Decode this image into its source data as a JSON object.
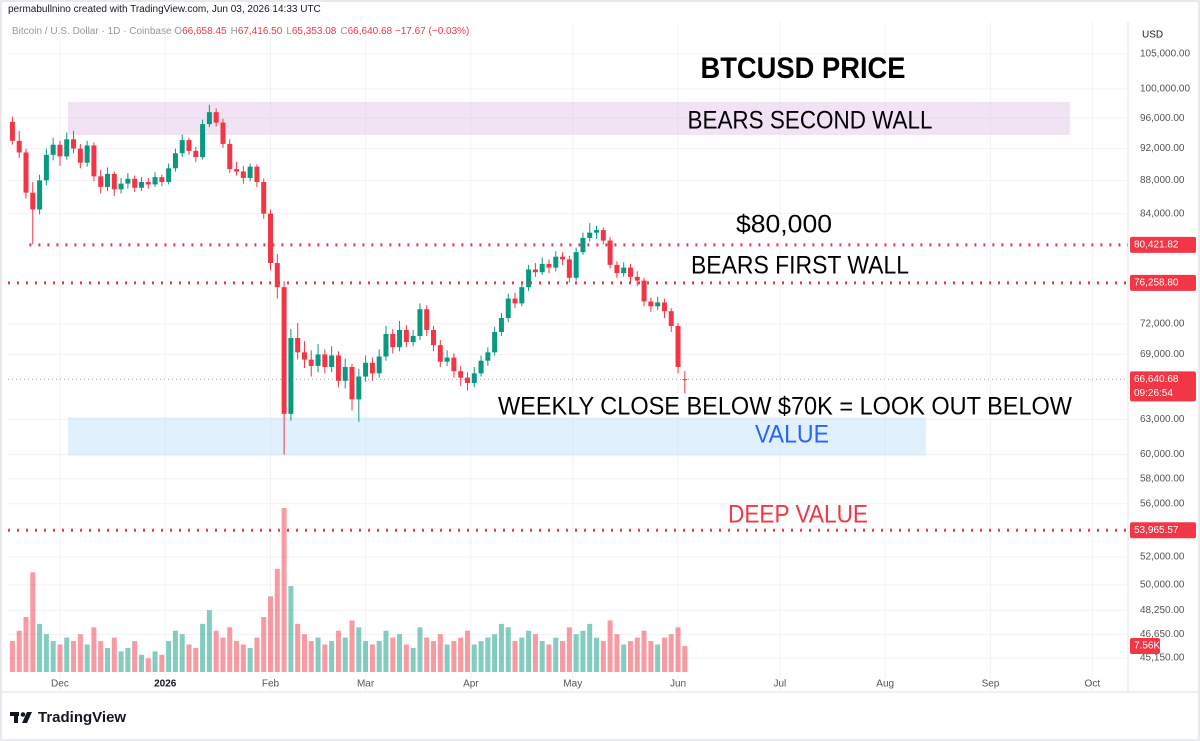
{
  "header": {
    "credit": "permabullnino created with TradingView.com, Jun 03, 2026 14:33 UTC",
    "symbol": "Bitcoin / U.S. Dollar · 1D · Coinbase",
    "ohlc": [
      {
        "key": "O",
        "text": "66,658.45"
      },
      {
        "key": "H",
        "text": "67,416.50"
      },
      {
        "key": "L",
        "text": "65,353.08"
      },
      {
        "key": "C",
        "text": "66,640.68"
      }
    ],
    "change": "−17.67 (−0.03%)",
    "currency": "USD"
  },
  "footer": {
    "brand": "TradingView"
  },
  "chart_data": {
    "type": "candlestick",
    "log": true,
    "grid": true,
    "up_color": "#089981",
    "down_color": "#f23645",
    "ylim": [
      43050,
      109800
    ],
    "yticks": [
      {
        "value": 105000,
        "label": "105,000.00"
      },
      {
        "value": 100000,
        "label": "100,000.00"
      },
      {
        "value": 96000,
        "label": "96,000.00"
      },
      {
        "value": 92000,
        "label": "92,000.00"
      },
      {
        "value": 88000,
        "label": "88,000.00"
      },
      {
        "value": 84000,
        "label": "84,000.00"
      },
      {
        "value": 72000,
        "label": "72,000.00"
      },
      {
        "value": 69000,
        "label": "69,000.00"
      },
      {
        "value": 63000,
        "label": "63,000.00"
      },
      {
        "value": 60000,
        "label": "60,000.00"
      },
      {
        "value": 58000,
        "label": "58,000.00"
      },
      {
        "value": 56000,
        "label": "56,000.00"
      },
      {
        "value": 52000,
        "label": "52,000.00"
      },
      {
        "value": 50000,
        "label": "50,000.00"
      },
      {
        "value": 48250,
        "label": "48,250.00"
      },
      {
        "value": 46650,
        "label": "46,650.00"
      },
      {
        "value": 45150,
        "label": "45,150.00"
      }
    ],
    "xlim": [
      -15.3,
      314.5
    ],
    "xticks": [
      {
        "value": 0,
        "label": "Dec"
      },
      {
        "value": 31,
        "label": "2026"
      },
      {
        "value": 62,
        "label": "Feb"
      },
      {
        "value": 90,
        "label": "Mar"
      },
      {
        "value": 121,
        "label": "Apr"
      },
      {
        "value": 151,
        "label": "May"
      },
      {
        "value": 182,
        "label": "Jun"
      },
      {
        "value": 212,
        "label": "Jul"
      },
      {
        "value": 243,
        "label": "Aug"
      },
      {
        "value": 274,
        "label": "Sep"
      },
      {
        "value": 304,
        "label": "Oct"
      }
    ],
    "x": [
      -14,
      -12,
      -10,
      -8,
      -6,
      -4,
      -2,
      0,
      2,
      4,
      6,
      8,
      10,
      12,
      14,
      16,
      18,
      20,
      22,
      24,
      26,
      28,
      30,
      32,
      34,
      36,
      38,
      40,
      42,
      44,
      46,
      48,
      50,
      52,
      54,
      56,
      58,
      60,
      62,
      64,
      66,
      68,
      70,
      72,
      74,
      76,
      78,
      80,
      82,
      84,
      86,
      88,
      90,
      92,
      94,
      96,
      98,
      100,
      102,
      104,
      106,
      108,
      110,
      112,
      114,
      116,
      118,
      120,
      122,
      124,
      126,
      128,
      130,
      132,
      134,
      136,
      138,
      140,
      142,
      144,
      146,
      148,
      150,
      152,
      154,
      156,
      158,
      160,
      162,
      164,
      166,
      168,
      170,
      172,
      174,
      176,
      178,
      180,
      182,
      184
    ],
    "candles": [
      [
        95500,
        96200,
        92500,
        93000
      ],
      [
        93000,
        94300,
        90800,
        91500
      ],
      [
        91500,
        92000,
        85800,
        86500
      ],
      [
        86500,
        87800,
        80500,
        84500
      ],
      [
        84500,
        88700,
        83900,
        88000
      ],
      [
        88000,
        92000,
        87400,
        91200
      ],
      [
        91200,
        93400,
        90500,
        92500
      ],
      [
        92500,
        93000,
        89800,
        91000
      ],
      [
        91000,
        94100,
        90600,
        93200
      ],
      [
        93200,
        94300,
        91400,
        92000
      ],
      [
        92000,
        92600,
        89500,
        90200
      ],
      [
        90200,
        93000,
        89700,
        92400
      ],
      [
        92400,
        92800,
        87900,
        88500
      ],
      [
        88500,
        89300,
        86400,
        87200
      ],
      [
        87200,
        89600,
        86700,
        88800
      ],
      [
        88800,
        89100,
        86100,
        86900
      ],
      [
        86900,
        88300,
        86400,
        87600
      ],
      [
        87600,
        88900,
        87000,
        88200
      ],
      [
        88200,
        88600,
        86600,
        87100
      ],
      [
        87100,
        88400,
        86700,
        87800
      ],
      [
        87800,
        88300,
        87000,
        87500
      ],
      [
        87500,
        89000,
        87200,
        88400
      ],
      [
        88400,
        88700,
        87300,
        87800
      ],
      [
        87800,
        90100,
        87500,
        89500
      ],
      [
        89500,
        92000,
        89100,
        91400
      ],
      [
        91400,
        93800,
        90900,
        93100
      ],
      [
        93100,
        93400,
        91200,
        91700
      ],
      [
        91700,
        92200,
        90300,
        90900
      ],
      [
        90900,
        95800,
        90600,
        95200
      ],
      [
        95200,
        97800,
        94800,
        96800
      ],
      [
        96800,
        97300,
        94900,
        95400
      ],
      [
        95400,
        95900,
        92100,
        92600
      ],
      [
        92600,
        93200,
        88900,
        89400
      ],
      [
        89400,
        90300,
        88600,
        89100
      ],
      [
        89100,
        89800,
        87600,
        88300
      ],
      [
        88300,
        90100,
        87900,
        89700
      ],
      [
        89700,
        90000,
        87200,
        87800
      ],
      [
        87800,
        88200,
        83400,
        84000
      ],
      [
        84000,
        84500,
        77600,
        78400
      ],
      [
        78400,
        79400,
        74600,
        75800
      ],
      [
        75800,
        76400,
        60000,
        63500
      ],
      [
        63500,
        71500,
        62900,
        70600
      ],
      [
        70600,
        72100,
        68500,
        69200
      ],
      [
        69200,
        70300,
        67700,
        68500
      ],
      [
        68500,
        69400,
        66900,
        67900
      ],
      [
        67900,
        70000,
        67300,
        69000
      ],
      [
        69000,
        69500,
        67200,
        67800
      ],
      [
        67800,
        69800,
        67300,
        68900
      ],
      [
        68900,
        69300,
        65900,
        66500
      ],
      [
        66500,
        68600,
        65800,
        67800
      ],
      [
        67800,
        68100,
        63800,
        64800
      ],
      [
        64800,
        67600,
        62800,
        66900
      ],
      [
        66900,
        68900,
        66400,
        68200
      ],
      [
        68200,
        68700,
        66500,
        67200
      ],
      [
        67200,
        69500,
        66800,
        68800
      ],
      [
        68800,
        71800,
        68400,
        71000
      ],
      [
        71000,
        71500,
        69100,
        69700
      ],
      [
        69700,
        72300,
        69300,
        71400
      ],
      [
        71400,
        71900,
        69700,
        70200
      ],
      [
        70200,
        71400,
        69800,
        70800
      ],
      [
        70800,
        74100,
        70400,
        73500
      ],
      [
        73500,
        73900,
        70800,
        71400
      ],
      [
        71400,
        71800,
        69300,
        69900
      ],
      [
        69900,
        70400,
        67800,
        68300
      ],
      [
        68300,
        69400,
        67900,
        68700
      ],
      [
        68700,
        69100,
        66800,
        67400
      ],
      [
        67400,
        67900,
        66000,
        66800
      ],
      [
        66800,
        67300,
        65600,
        66300
      ],
      [
        66300,
        67800,
        65900,
        67200
      ],
      [
        67200,
        68900,
        66900,
        68400
      ],
      [
        68400,
        69700,
        67900,
        69200
      ],
      [
        69200,
        71700,
        68900,
        71200
      ],
      [
        71200,
        73100,
        70800,
        72600
      ],
      [
        72600,
        75100,
        72200,
        74600
      ],
      [
        74600,
        75200,
        73600,
        74100
      ],
      [
        74100,
        76400,
        73800,
        75800
      ],
      [
        75800,
        78200,
        75400,
        77700
      ],
      [
        77700,
        78400,
        76900,
        77400
      ],
      [
        77400,
        79000,
        77100,
        78300
      ],
      [
        78300,
        78800,
        77300,
        77900
      ],
      [
        77900,
        79700,
        77500,
        79100
      ],
      [
        79100,
        79600,
        78200,
        78800
      ],
      [
        78800,
        79200,
        76300,
        76800
      ],
      [
        76800,
        80100,
        76500,
        79600
      ],
      [
        79600,
        81800,
        79300,
        81200
      ],
      [
        81200,
        82900,
        80800,
        81800
      ],
      [
        81800,
        82600,
        81100,
        82100
      ],
      [
        82100,
        82400,
        80500,
        80900
      ],
      [
        80900,
        81300,
        77800,
        78200
      ],
      [
        78200,
        78600,
        76800,
        77300
      ],
      [
        77300,
        78500,
        76900,
        77900
      ],
      [
        77900,
        78300,
        76400,
        76900
      ],
      [
        76900,
        77500,
        75900,
        76500
      ],
      [
        76500,
        76800,
        73800,
        74300
      ],
      [
        74300,
        74700,
        73200,
        73800
      ],
      [
        73800,
        74800,
        73400,
        74200
      ],
      [
        74200,
        74600,
        72600,
        73300
      ],
      [
        73300,
        73600,
        71200,
        71800
      ],
      [
        71800,
        72100,
        67200,
        67800
      ],
      [
        66658.45,
        67416.5,
        65353.08,
        66640.68
      ]
    ],
    "volumes": [
      9,
      12,
      16,
      29,
      14,
      11,
      9,
      8,
      10,
      9,
      11,
      8,
      13,
      9,
      7,
      10,
      6,
      7,
      9,
      5,
      4,
      6,
      5,
      9,
      12,
      11,
      8,
      7,
      14,
      18,
      12,
      10,
      13,
      9,
      8,
      7,
      10,
      16,
      22,
      30,
      47.7,
      25,
      14,
      11,
      9,
      10,
      8,
      9,
      12,
      10,
      15,
      13,
      9,
      8,
      9,
      12,
      10,
      11,
      8,
      7,
      13,
      10,
      9,
      11,
      8,
      9,
      10,
      12,
      8,
      9,
      10,
      11,
      14,
      13,
      9,
      10,
      12,
      11,
      9,
      8,
      10,
      9,
      13,
      11,
      12,
      14,
      10,
      9,
      15,
      11,
      8,
      9,
      10,
      12,
      9,
      8,
      10,
      11,
      13,
      7.56
    ],
    "volume_label": "7.56K",
    "levels": [
      {
        "value": 80421.82,
        "label": "80,421.82",
        "start": -9
      },
      {
        "value": 76258.8,
        "label": "76,258.80"
      },
      {
        "value": 53965.57,
        "label": "53,965.57"
      }
    ],
    "level_color": "#f23645",
    "last_price": {
      "value": 66640.68,
      "label": "66,640.68",
      "countdown": "09:26:54"
    },
    "zones": [
      {
        "low": 93770,
        "high": 98190,
        "start": 2.4,
        "end": 297.4,
        "color": "#e1bee7"
      },
      {
        "low": 59900,
        "high": 63200,
        "start": 2.4,
        "end": 255,
        "color": "#bbdefb"
      }
    ],
    "annotations": [
      {
        "text": "BTCUSD PRICE",
        "color": "#000000"
      },
      {
        "text": "BEARS SECOND WALL",
        "color": "#000000"
      },
      {
        "text": "$80,000",
        "color": "#000000"
      },
      {
        "text": "BEARS FIRST WALL",
        "color": "#000000"
      },
      {
        "text": "WEEKLY CLOSE BELOW $70K = LOOK OUT BELOW",
        "color": "#000000"
      },
      {
        "text": "VALUE",
        "color": "#2962ff"
      },
      {
        "text": "DEEP VALUE",
        "color": "#f23645"
      }
    ]
  }
}
